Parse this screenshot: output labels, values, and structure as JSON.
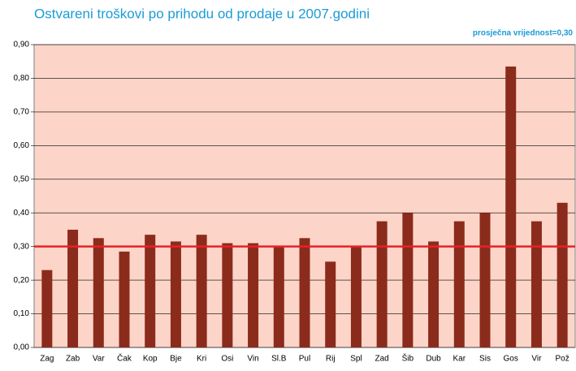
{
  "chart_data": {
    "type": "bar",
    "title": "Ostvareni troškovi po prihodu od prodaje u 2007.godini",
    "categories": [
      "Zag",
      "Zab",
      "Var",
      "Čak",
      "Kop",
      "Bje",
      "Kri",
      "Osi",
      "Vin",
      "Sl.B",
      "Pul",
      "Rij",
      "Spl",
      "Zad",
      "Šib",
      "Dub",
      "Kar",
      "Sis",
      "Gos",
      "Vir",
      "Pož"
    ],
    "values": [
      0.23,
      0.35,
      0.325,
      0.285,
      0.335,
      0.315,
      0.335,
      0.31,
      0.31,
      0.3,
      0.325,
      0.255,
      0.3,
      0.375,
      0.4,
      0.315,
      0.375,
      0.4,
      0.835,
      0.375,
      0.43
    ],
    "color": "#8b2b1c",
    "reference_line": {
      "value": 0.3,
      "label": "prosječna vrijednost=0,30",
      "color": "#e8202a"
    },
    "ylim": [
      0,
      0.9
    ],
    "yticks": [
      {
        "value": 0,
        "label": "0,00"
      },
      {
        "value": 0.1,
        "label": "0,10"
      },
      {
        "value": 0.2,
        "label": "0,20"
      },
      {
        "value": 0.3,
        "label": "0,30"
      },
      {
        "value": 0.4,
        "label": "0,40"
      },
      {
        "value": 0.5,
        "label": "0,50"
      },
      {
        "value": 0.6,
        "label": "0,60"
      },
      {
        "value": 0.7,
        "label": "0,70"
      },
      {
        "value": 0.8,
        "label": "0,80"
      },
      {
        "value": 0.9,
        "label": "0,90"
      }
    ],
    "grid": true
  }
}
